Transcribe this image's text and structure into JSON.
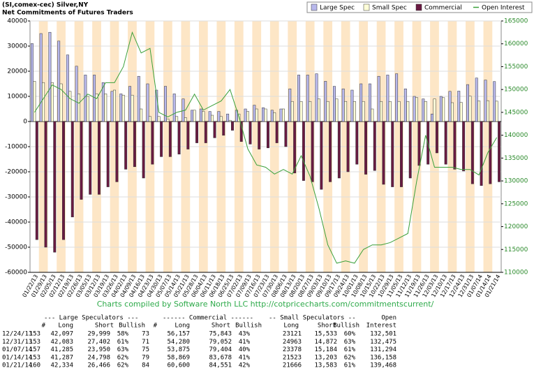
{
  "chart_data": {
    "type": "bar",
    "title": "(SI,comex-cec) Silver,NY",
    "subtitle": "Net Commitments of Futures Traders",
    "annotation": "Charts compiled by Software North LLC  http://cotpricecharts.com/commitmentscurrent/",
    "legend": "top-right",
    "grid": true,
    "categories": [
      "01/22/13",
      "01/29/13",
      "02/05/13",
      "02/12/13",
      "02/19/13",
      "02/26/13",
      "03/05/13",
      "03/12/13",
      "03/19/13",
      "03/26/13",
      "04/02/13",
      "04/09/13",
      "04/16/13",
      "04/23/13",
      "04/30/13",
      "05/07/13",
      "05/14/13",
      "05/21/13",
      "05/28/13",
      "06/04/13",
      "06/11/13",
      "06/18/13",
      "06/25/13",
      "07/02/13",
      "07/09/13",
      "07/16/13",
      "07/23/13",
      "07/30/13",
      "08/06/13",
      "08/13/13",
      "08/20/13",
      "08/27/13",
      "09/03/13",
      "09/10/13",
      "09/17/13",
      "09/24/13",
      "10/01/13",
      "10/08/13",
      "10/15/13",
      "10/22/13",
      "10/29/13",
      "11/05/13",
      "11/12/13",
      "11/19/13",
      "11/26/13",
      "12/03/13",
      "12/10/13",
      "12/17/13",
      "12/24/13",
      "12/31/13",
      "01/07/14",
      "01/14/14",
      "01/21/14"
    ],
    "series": [
      {
        "name": "Large Spec",
        "color": "#b8b8ec",
        "values": [
          31000,
          35000,
          35500,
          32000,
          26500,
          22000,
          18500,
          18500,
          15500,
          12000,
          11000,
          14000,
          18000,
          15000,
          12500,
          14000,
          11000,
          9000,
          4500,
          5000,
          4000,
          4000,
          3000,
          4500,
          5000,
          6500,
          5500,
          4500,
          5000,
          13000,
          18500,
          18500,
          19000,
          16000,
          14000,
          13000,
          12500,
          15000,
          15000,
          18000,
          18500,
          19000,
          13000,
          10000,
          9000,
          3000,
          10000,
          12000,
          12100,
          14700,
          17300,
          16500,
          15900
        ]
      },
      {
        "name": "Small Spec",
        "color": "#ffffd8",
        "values": [
          16000,
          15500,
          15500,
          15000,
          12000,
          11000,
          10000,
          11000,
          11000,
          12500,
          10500,
          10500,
          5000,
          2000,
          2000,
          1000,
          2000,
          1500,
          4500,
          4000,
          2500,
          2000,
          500,
          3000,
          4000,
          5000,
          5000,
          3500,
          5000,
          8000,
          8000,
          8000,
          9000,
          8000,
          9000,
          8000,
          8000,
          8000,
          5000,
          8000,
          8000,
          8000,
          8000,
          9500,
          8000,
          9000,
          9500,
          7500,
          7600,
          10100,
          8200,
          8300,
          8100
        ]
      },
      {
        "name": "Commercial",
        "color": "#6a1a42",
        "values": [
          -47000,
          -50000,
          -52000,
          -47000,
          -38000,
          -31000,
          -29000,
          -29000,
          -26000,
          -24000,
          -19000,
          -18000,
          -22500,
          -17000,
          -14000,
          -14000,
          -13000,
          -11000,
          -8500,
          -8500,
          -6500,
          -5500,
          -3500,
          -8000,
          -9000,
          -11000,
          -10500,
          -8500,
          -10000,
          -20500,
          -23500,
          -24000,
          -27000,
          -24000,
          -22500,
          -20000,
          -17000,
          -21000,
          -19500,
          -25000,
          -26000,
          -26000,
          -22500,
          -17500,
          -17000,
          -12500,
          -17000,
          -19000,
          -19700,
          -24800,
          -25500,
          -24800,
          -24000
        ]
      },
      {
        "name": "Open Interest",
        "color": "#3aa03a",
        "type": "line",
        "axis": "y2",
        "values": [
          145000,
          148000,
          151000,
          150000,
          148000,
          147000,
          149000,
          148000,
          151500,
          151500,
          155000,
          162500,
          158000,
          159000,
          145000,
          144000,
          145000,
          145500,
          149000,
          145500,
          146500,
          147500,
          150000,
          144000,
          137000,
          133500,
          133000,
          131500,
          132500,
          131500,
          135500,
          131000,
          124000,
          116000,
          112000,
          112500,
          112000,
          115000,
          116000,
          116000,
          116500,
          117500,
          118500,
          130000,
          140000,
          133000,
          133000,
          133000,
          132500,
          132500,
          131300,
          136200,
          139500
        ]
      }
    ],
    "ylim": [
      -60000,
      40000
    ],
    "yticks": [
      -60000,
      -50000,
      -40000,
      -30000,
      -20000,
      -10000,
      0,
      10000,
      20000,
      30000,
      40000
    ],
    "y2lim": [
      110000,
      165000
    ],
    "y2ticks": [
      110000,
      115000,
      120000,
      125000,
      130000,
      135000,
      140000,
      145000,
      150000,
      155000,
      160000,
      165000
    ]
  },
  "table": {
    "group_headers": [
      "--- Large Speculators ---",
      "------ Commercial ------",
      "-- Small Speculators --",
      "Open"
    ],
    "headers": [
      "#",
      "Long",
      "Short",
      "Bullish",
      "#",
      "Long",
      "Short",
      "Bullish",
      "Long",
      "Short",
      "Bullish",
      "Interest"
    ],
    "rows": [
      [
        "12/24/13",
        "153",
        "42,097",
        "29,999",
        "58%",
        "73",
        "56,157",
        "75,843",
        "43%",
        "23121",
        "15,533",
        "60%",
        "132,501"
      ],
      [
        "12/31/13",
        "153",
        "42,083",
        "27,402",
        "61%",
        "71",
        "54,280",
        "79,052",
        "41%",
        "24963",
        "14,872",
        "63%",
        "132,475"
      ],
      [
        "01/07/14",
        "157",
        "41,285",
        "23,950",
        "63%",
        "75",
        "53,875",
        "79,404",
        "40%",
        "23378",
        "15,184",
        "61%",
        "131,294"
      ],
      [
        "01/14/14",
        "153",
        "41,287",
        "24,798",
        "62%",
        "79",
        "58,869",
        "83,678",
        "41%",
        "21523",
        "13,203",
        "62%",
        "136,158"
      ],
      [
        "01/21/14",
        "160",
        "42,334",
        "26,466",
        "62%",
        "84",
        "60,600",
        "84,551",
        "42%",
        "21666",
        "13,583",
        "61%",
        "139,468"
      ]
    ]
  }
}
